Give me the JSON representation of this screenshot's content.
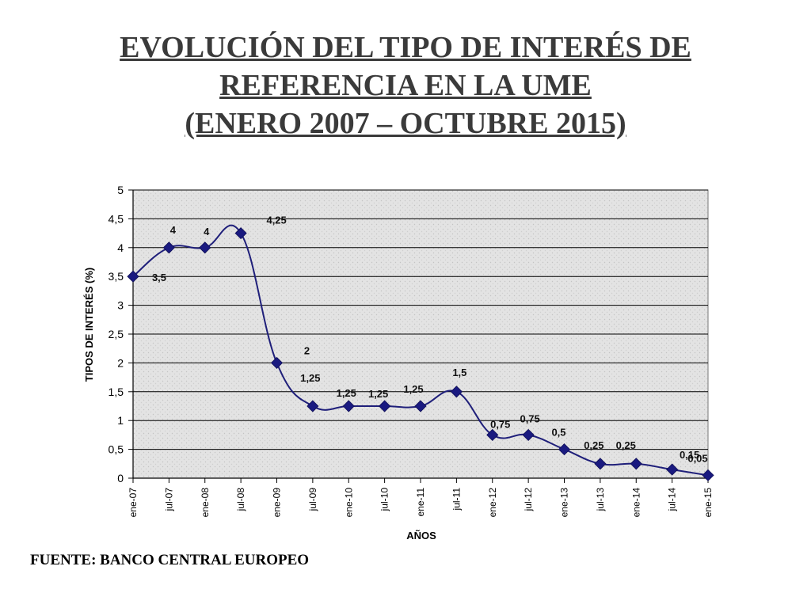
{
  "title_lines": [
    "EVOLUCIÓN DEL TIPO DE INTERÉS DE",
    "REFERENCIA EN  LA UME",
    "(ENERO 2007 – OCTUBRE 2015)"
  ],
  "source": "FUENTE: BANCO CENTRAL EUROPEO",
  "colors": {
    "line": "#1f1f7a",
    "marker": "#1a1a80",
    "plot_background": "#e3e3e3",
    "grid": "#000000"
  },
  "chart_data": {
    "type": "line",
    "title": "",
    "xlabel": "AÑOS",
    "ylabel": "TIPOS DE INTERÉS (%)",
    "ylim": [
      0,
      5
    ],
    "yticks": [
      "0",
      "0,5",
      "1",
      "1,5",
      "2",
      "2,5",
      "3",
      "3,5",
      "4",
      "4,5",
      "5"
    ],
    "grid": true,
    "categories": [
      "ene-07",
      "jul-07",
      "ene-08",
      "jul-08",
      "ene-09",
      "jul-09",
      "ene-10",
      "jul-10",
      "ene-11",
      "jul-11",
      "ene-12",
      "jul-12",
      "ene-13",
      "jul-13",
      "ene-14",
      "jul-14",
      "ene-15"
    ],
    "series": [
      {
        "values": [
          3.5,
          4,
          4,
          4.25,
          2,
          1.25,
          1.25,
          1.25,
          1.25,
          1.5,
          0.75,
          0.75,
          0.5,
          0.25,
          0.25,
          0.15,
          0.05
        ]
      }
    ],
    "annotations": [
      {
        "text": "3,5",
        "x": "ene-07",
        "y": 3.5
      },
      {
        "text": "4",
        "x": "jul-07",
        "y": 4
      },
      {
        "text": "4",
        "x": "ene-08",
        "y": 4
      },
      {
        "text": "4,25",
        "x": "jul-08",
        "y": 4.25
      },
      {
        "text": "2",
        "x": "ene-09",
        "y": 2
      },
      {
        "text": "1,25",
        "x": "jul-09",
        "y": 1.25
      },
      {
        "text": "1,25",
        "x": "ene-10",
        "y": 1.25
      },
      {
        "text": "1,25",
        "x": "jul-10",
        "y": 1.25
      },
      {
        "text": "1,25",
        "x": "ene-11",
        "y": 1.25
      },
      {
        "text": "1,5",
        "x": "jul-11",
        "y": 1.5
      },
      {
        "text": "0,75",
        "x": "ene-12",
        "y": 0.75
      },
      {
        "text": "0,75",
        "x": "jul-12",
        "y": 0.75
      },
      {
        "text": "0,5",
        "x": "ene-13",
        "y": 0.5
      },
      {
        "text": "0,25",
        "x": "jul-13",
        "y": 0.25
      },
      {
        "text": "0,25",
        "x": "ene-14",
        "y": 0.25
      },
      {
        "text": "0,15",
        "x": "jul-14",
        "y": 0.15
      },
      {
        "text": "0,05",
        "x": "ene-15",
        "y": 0.05
      }
    ]
  }
}
